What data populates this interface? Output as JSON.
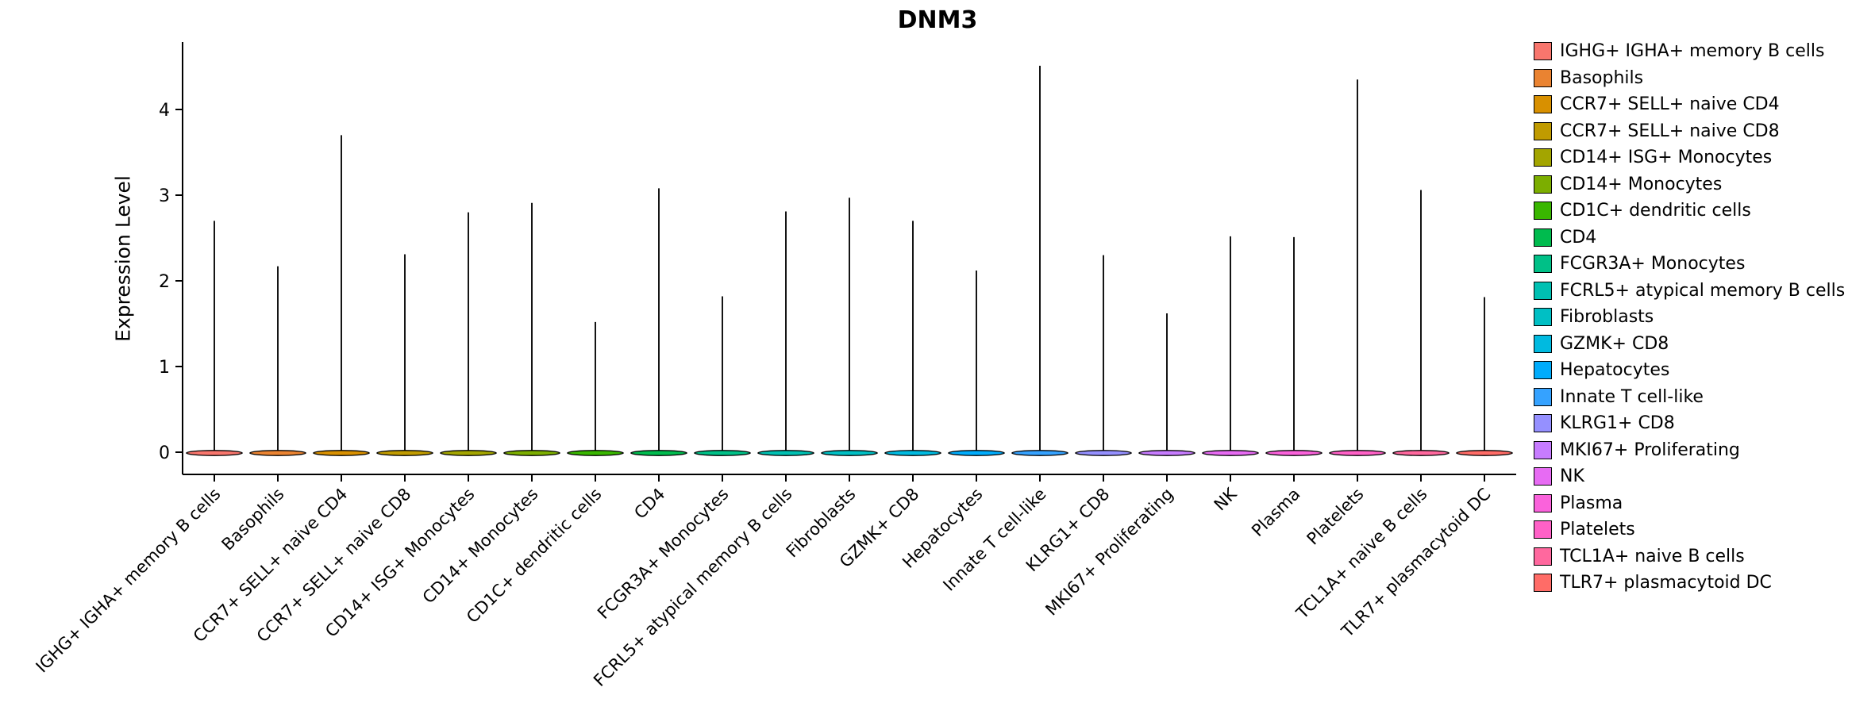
{
  "chart_data": {
    "type": "violin",
    "title": "DNM3",
    "ylabel": "Expression Level",
    "xlabel": "",
    "yticks": [
      0,
      1,
      2,
      3,
      4
    ],
    "ylim": [
      -0.25,
      4.79
    ],
    "grid": false,
    "legend_position": "right",
    "categories": [
      "IGHG+ IGHA+ memory B cells",
      "Basophils",
      "CCR7+ SELL+ naive CD4",
      "CCR7+ SELL+ naive CD8",
      "CD14+ ISG+ Monocytes",
      "CD14+ Monocytes",
      "CD1C+ dendritic cells",
      "CD4",
      "FCGR3A+ Monocytes",
      "FCRL5+ atypical memory B cells",
      "Fibroblasts",
      "GZMK+ CD8",
      "Hepatocytes",
      "Innate T cell-like",
      "KLRG1+ CD8",
      "MKI67+ Proliferating",
      "NK",
      "Plasma",
      "Platelets",
      "TCL1A+ naive B cells",
      "TLR7+ plasmacytoid DC"
    ],
    "peak_expression": [
      2.7,
      2.17,
      3.7,
      2.31,
      2.8,
      2.91,
      1.52,
      3.08,
      1.82,
      2.81,
      2.97,
      2.7,
      2.12,
      4.51,
      2.3,
      1.62,
      2.52,
      2.51,
      4.35,
      3.06,
      1.81
    ],
    "baseline_value": 0,
    "colors": [
      "#F8766D",
      "#EA8331",
      "#D89000",
      "#C09B00",
      "#A3A500",
      "#7CAE00",
      "#39B600",
      "#00BB4E",
      "#00C087",
      "#00C0B2",
      "#00BFC4",
      "#00BAE0",
      "#00ACFC",
      "#35A2FF",
      "#9590FF",
      "#C77CFF",
      "#E76BF3",
      "#FA62DB",
      "#FF61C7",
      "#FF689E",
      "#FF6C67"
    ]
  }
}
